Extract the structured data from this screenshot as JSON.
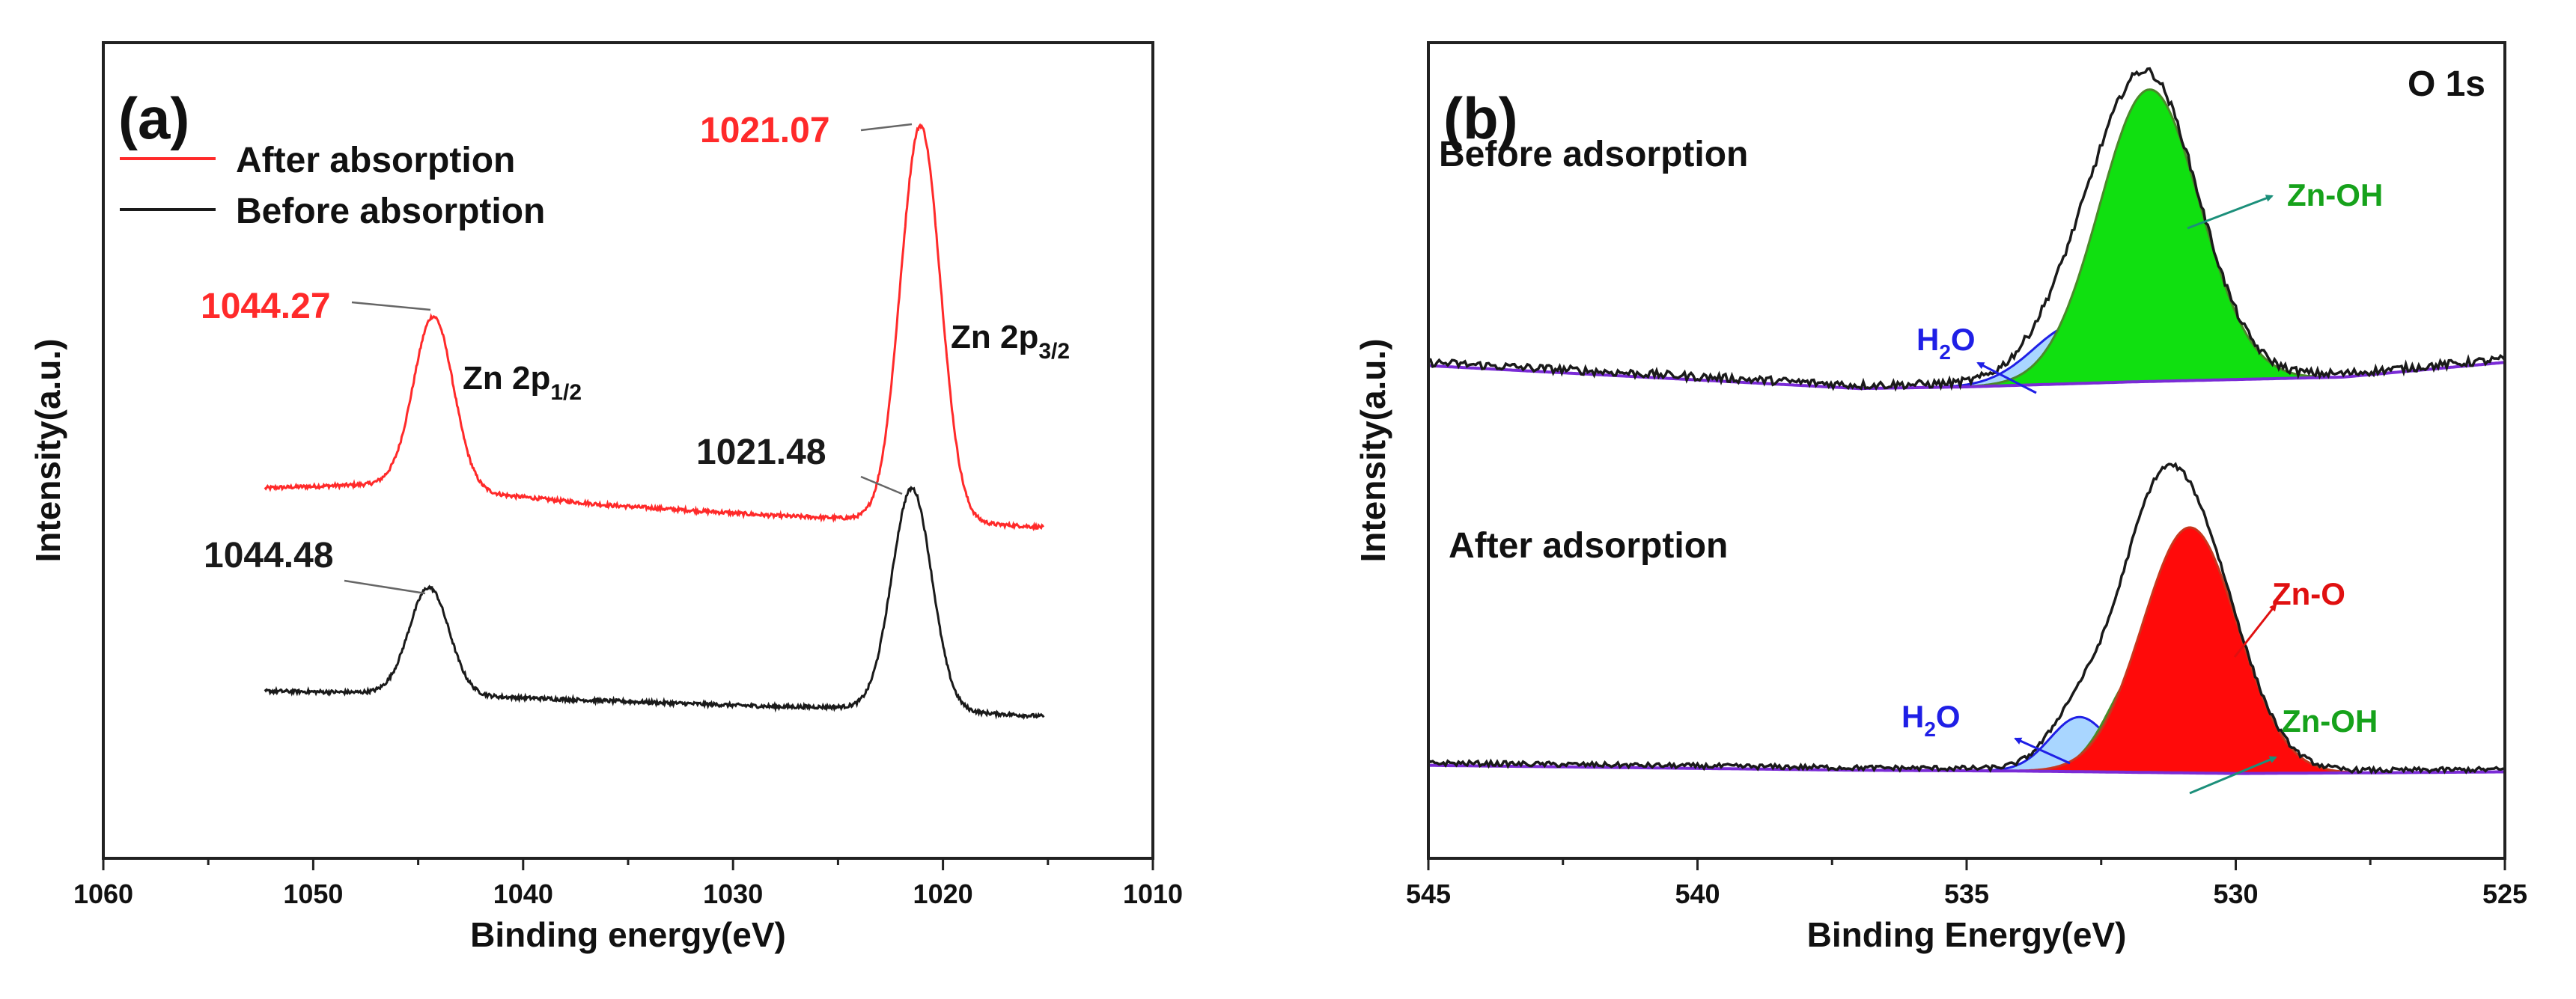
{
  "colors": {
    "red": "#ff2a2a",
    "black": "#1a1a1a",
    "blue": "#1f1fe6",
    "green": "#16a21b",
    "teal": "#1b8f7a",
    "h2o_fill": "#a9d6ff",
    "znoh_fill": "#10e010",
    "zno_fill": "#ff0a0a",
    "baseline": "#7a2bd6"
  },
  "chart_data": [
    {
      "type": "line",
      "panel": "(a)",
      "xlabel": "Binding energy(eV)",
      "ylabel": "Intensity(a.u.)",
      "xlim": [
        1060,
        1010
      ],
      "ylim": [
        0,
        100
      ],
      "xticks": [
        "1060",
        "1050",
        "1040",
        "1030",
        "1020",
        "1010"
      ],
      "legend": [
        {
          "label": "After absorption",
          "color": "#ff2a2a"
        },
        {
          "label": "Before absorption",
          "color": "#1a1a1a"
        }
      ],
      "series": [
        {
          "name": "After absorption",
          "x_range": [
            1052.3,
            1015.2
          ],
          "baseline": [
            [
              1052.3,
              45.4
            ],
            [
              1046.5,
              45.9
            ],
            [
              1036,
              43.3
            ],
            [
              1028,
              42.0
            ],
            [
              1023.5,
              41.6
            ],
            [
              1018,
              41.0
            ],
            [
              1015.2,
              40.6
            ]
          ],
          "peaks": [
            {
              "center": 1044.27,
              "height": 21.1,
              "width": 0.95
            },
            {
              "center": 1021.07,
              "height": 48.5,
              "width": 0.95
            }
          ]
        },
        {
          "name": "Before absorption",
          "x_range": [
            1052.3,
            1015.2
          ],
          "baseline": [
            [
              1052.3,
              20.5
            ],
            [
              1046.5,
              20.3
            ],
            [
              1036,
              19.3
            ],
            [
              1028,
              18.6
            ],
            [
              1023.5,
              18.5
            ],
            [
              1018,
              17.8
            ],
            [
              1015.2,
              17.4
            ]
          ],
          "peaks": [
            {
              "center": 1044.48,
              "height": 13.1,
              "width": 0.95
            },
            {
              "center": 1021.48,
              "height": 27.1,
              "width": 0.95
            }
          ]
        }
      ],
      "annotations": [
        {
          "text": "1044.27",
          "x": 1044.27,
          "color": "red"
        },
        {
          "text": "1021.07",
          "x": 1021.07,
          "color": "red"
        },
        {
          "text": "1044.48",
          "x": 1044.48,
          "color": "black"
        },
        {
          "text": "1021.48",
          "x": 1021.48,
          "color": "black"
        }
      ],
      "peak_labels": [
        {
          "main": "Zn 2p",
          "sub": "1/2"
        },
        {
          "main": "Zn 2p",
          "sub": "3/2"
        }
      ]
    },
    {
      "type": "line",
      "panel": "(b)",
      "title": "O 1s",
      "xlabel": "Binding Energy(eV)",
      "ylabel": "Intensity(a.u.)",
      "xlim": [
        545,
        525
      ],
      "ylim": [
        0,
        100
      ],
      "xticks": [
        "545",
        "540",
        "535",
        "530",
        "525"
      ],
      "groups": [
        {
          "label": "Before adsorption",
          "baseline": [
            [
              545,
              60.4
            ],
            [
              537,
              57.6
            ],
            [
              535,
              57.8
            ],
            [
              532,
              58.4
            ],
            [
              528,
              59.0
            ],
            [
              525,
              60.8
            ]
          ],
          "components": [
            {
              "name": "H2O",
              "center": 532.95,
              "height": 7.3,
              "width": 0.8
            },
            {
              "name": "Zn-OH",
              "center": 531.6,
              "height": 35.8,
              "width": 0.93
            }
          ]
        },
        {
          "label": "After adsorption",
          "baseline": [
            [
              545,
              11.4
            ],
            [
              537,
              10.8
            ],
            [
              534,
              10.7
            ],
            [
              530,
              10.4
            ],
            [
              527,
              10.5
            ],
            [
              525,
              10.6
            ]
          ],
          "components": [
            {
              "name": "H2O",
              "center": 532.9,
              "height": 6.7,
              "width": 0.55
            },
            {
              "name": "Zn-OH",
              "center": 531.7,
              "height": 13.2,
              "width": 0.62
            },
            {
              "name": "Zn-O",
              "center": 530.85,
              "height": 30.1,
              "width": 0.88
            }
          ]
        }
      ],
      "labels": [
        {
          "main": "H",
          "sub": "2",
          "tail": "O",
          "color": "blue"
        },
        {
          "main": "Zn-OH",
          "color": "green"
        },
        {
          "main": "H",
          "sub": "2",
          "tail": "O",
          "color": "blue"
        },
        {
          "main": "Zn-O",
          "color": "red"
        },
        {
          "main": "Zn-OH",
          "color": "green"
        }
      ]
    }
  ]
}
